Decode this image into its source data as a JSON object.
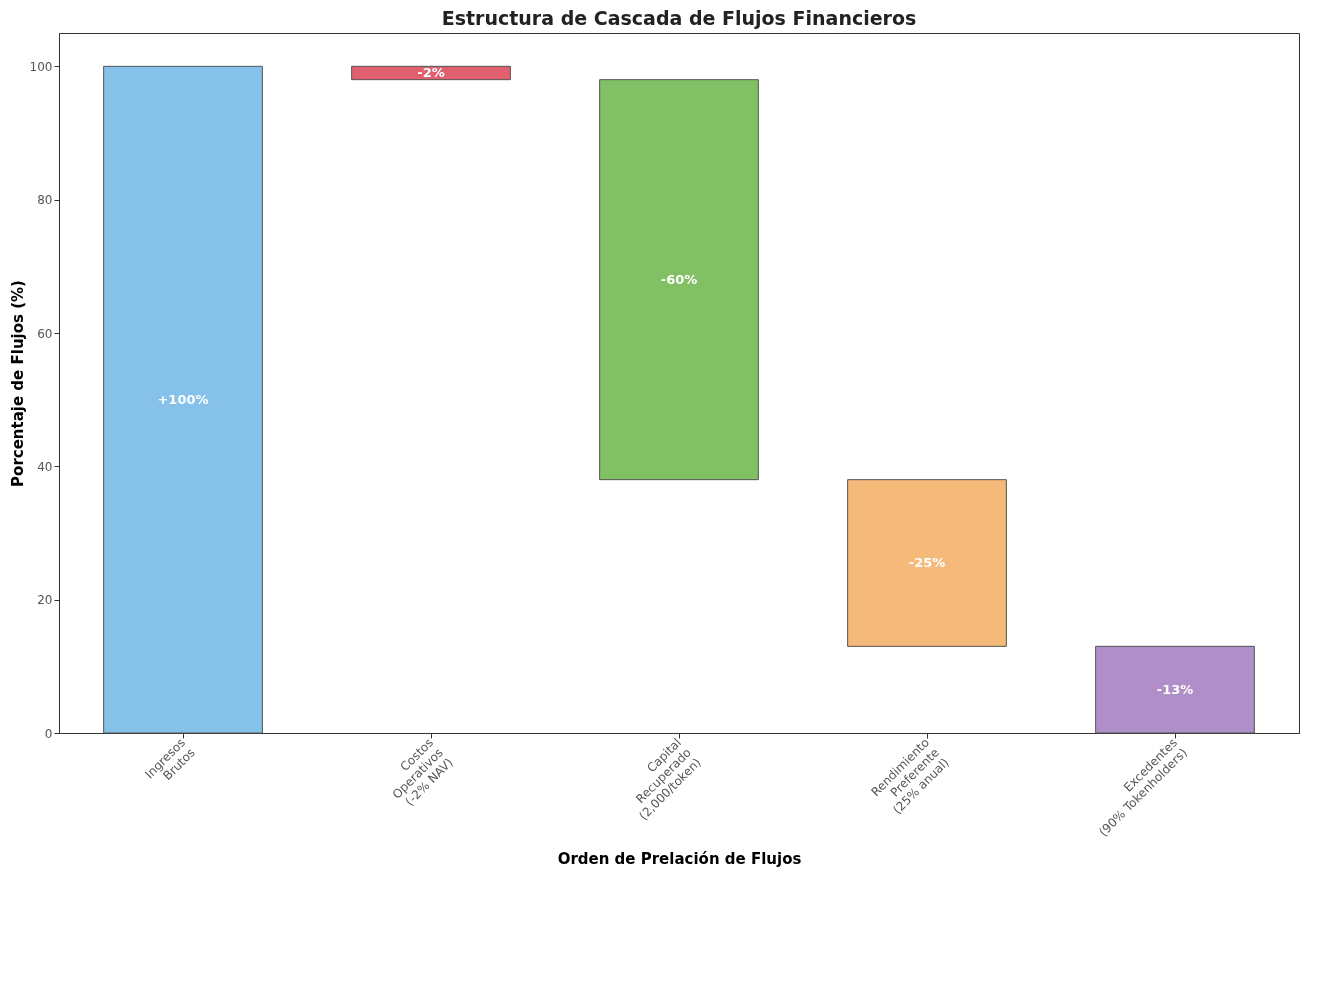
{
  "chart_data": {
    "type": "bar",
    "title": "Estructura de Cascada de Flujos Financieros",
    "xlabel": "Orden de Prelación de Flujos",
    "ylabel": "Porcentaje de Flujos (%)",
    "categories": [
      "Ingresos\nBrutos",
      "Costos\nOperativos\n(-2% NAV)",
      "Capital\nRecuperado\n(2,000/token)",
      "Rendimiento\nPreferente\n(25% anual)",
      "Excedentes\n(90% Tokenholders)"
    ],
    "values": [
      100,
      -2,
      -60,
      -25,
      -13
    ],
    "base": [
      0,
      100,
      98,
      38,
      13
    ],
    "colors": [
      "#85c1e9",
      "#e06070",
      "#82c065",
      "#f5b97a",
      "#b08fc8"
    ],
    "value_labels": [
      "+100%",
      "-2%",
      "-60%",
      "-25%",
      "-13%"
    ],
    "ylim": [
      0,
      105
    ],
    "yticks": [
      0,
      20,
      40,
      60,
      80,
      100
    ],
    "grid": false,
    "legend": false
  }
}
